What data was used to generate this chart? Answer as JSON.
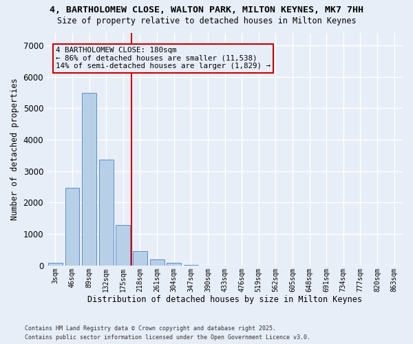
{
  "title_line1": "4, BARTHOLOMEW CLOSE, WALTON PARK, MILTON KEYNES, MK7 7HH",
  "title_line2": "Size of property relative to detached houses in Milton Keynes",
  "xlabel": "Distribution of detached houses by size in Milton Keynes",
  "ylabel": "Number of detached properties",
  "categories": [
    "3sqm",
    "46sqm",
    "89sqm",
    "132sqm",
    "175sqm",
    "218sqm",
    "261sqm",
    "304sqm",
    "347sqm",
    "390sqm",
    "433sqm",
    "476sqm",
    "519sqm",
    "562sqm",
    "605sqm",
    "648sqm",
    "691sqm",
    "734sqm",
    "777sqm",
    "820sqm",
    "863sqm"
  ],
  "values": [
    80,
    2480,
    5480,
    3360,
    1290,
    460,
    185,
    80,
    20,
    5,
    2,
    1,
    0,
    0,
    0,
    0,
    0,
    0,
    0,
    0,
    0
  ],
  "bar_color": "#b8cfe8",
  "bar_edge_color": "#5b8fc9",
  "bg_color": "#e8eef8",
  "grid_color": "#ffffff",
  "vline_x": 4.5,
  "vline_color": "#cc0000",
  "annotation_text": "4 BARTHOLOMEW CLOSE: 180sqm\n← 86% of detached houses are smaller (11,538)\n14% of semi-detached houses are larger (1,829) →",
  "annotation_box_edgecolor": "#cc0000",
  "ylim": [
    0,
    7400
  ],
  "yticks": [
    0,
    1000,
    2000,
    3000,
    4000,
    5000,
    6000,
    7000
  ],
  "footer_line1": "Contains HM Land Registry data © Crown copyright and database right 2025.",
  "footer_line2": "Contains public sector information licensed under the Open Government Licence v3.0."
}
